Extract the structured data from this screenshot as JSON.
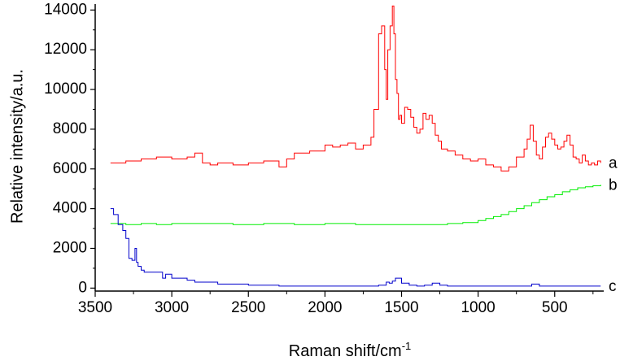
{
  "chart_data": {
    "type": "line",
    "xlabel": "Raman shift/cm",
    "xlabel_sup": "-1",
    "ylabel": "Relative intensity/a.u.",
    "xlim": [
      3500,
      180
    ],
    "ylim": [
      -150,
      14300
    ],
    "x_reversed": true,
    "grid": false,
    "legend": "none",
    "x_ticks": [
      3500,
      3000,
      2500,
      2000,
      1500,
      1000,
      500
    ],
    "x_tick_labels": [
      "3500",
      "3000",
      "2500",
      "2000",
      "1500",
      "1000",
      "500"
    ],
    "y_ticks": [
      0,
      2000,
      4000,
      6000,
      8000,
      10000,
      12000,
      14000
    ],
    "y_tick_labels": [
      "0",
      "2000",
      "4000",
      "6000",
      "8000",
      "10000",
      "12000",
      "14000"
    ],
    "series": [
      {
        "label": "a",
        "color": "#ff0000",
        "x": [
          3400,
          3300,
          3200,
          3100,
          3000,
          2900,
          2850,
          2800,
          2750,
          2700,
          2600,
          2500,
          2400,
          2300,
          2250,
          2200,
          2100,
          2000,
          1950,
          1900,
          1850,
          1800,
          1750,
          1700,
          1680,
          1650,
          1630,
          1610,
          1600,
          1590,
          1575,
          1560,
          1550,
          1540,
          1530,
          1520,
          1510,
          1500,
          1480,
          1460,
          1440,
          1420,
          1400,
          1380,
          1360,
          1340,
          1320,
          1300,
          1280,
          1260,
          1240,
          1200,
          1150,
          1100,
          1050,
          1000,
          950,
          900,
          850,
          800,
          750,
          700,
          680,
          660,
          640,
          620,
          600,
          580,
          560,
          540,
          520,
          500,
          480,
          460,
          440,
          420,
          400,
          380,
          360,
          340,
          320,
          300,
          280,
          260,
          240,
          220,
          200
        ],
        "y": [
          6300,
          6400,
          6500,
          6600,
          6500,
          6600,
          6800,
          6300,
          6200,
          6300,
          6200,
          6300,
          6400,
          6100,
          6500,
          6800,
          6900,
          7200,
          7100,
          7200,
          7300,
          7000,
          7200,
          7600,
          9000,
          12800,
          13200,
          11000,
          9500,
          12000,
          13200,
          14200,
          12800,
          10500,
          9800,
          8500,
          8700,
          8300,
          9100,
          9000,
          8600,
          8100,
          7800,
          8000,
          8800,
          8500,
          8700,
          8300,
          7700,
          7400,
          7000,
          6900,
          6700,
          6500,
          6400,
          6500,
          6200,
          6100,
          5900,
          6100,
          6600,
          7000,
          7500,
          8200,
          7400,
          6700,
          6500,
          7100,
          7600,
          7800,
          7500,
          7200,
          7000,
          7100,
          7400,
          7700,
          7200,
          6600,
          6500,
          6300,
          6700,
          6400,
          6200,
          6300,
          6200,
          6400,
          6300
        ]
      },
      {
        "label": "b",
        "color": "#00ee00",
        "x": [
          3400,
          3300,
          3200,
          3100,
          3000,
          2800,
          2600,
          2400,
          2200,
          2000,
          1800,
          1600,
          1400,
          1200,
          1100,
          1000,
          950,
          900,
          850,
          800,
          750,
          700,
          650,
          600,
          550,
          500,
          450,
          400,
          350,
          300,
          250,
          200
        ],
        "y": [
          3250,
          3200,
          3250,
          3200,
          3250,
          3250,
          3200,
          3250,
          3200,
          3250,
          3200,
          3200,
          3200,
          3250,
          3300,
          3400,
          3500,
          3600,
          3700,
          3850,
          4000,
          4150,
          4300,
          4450,
          4600,
          4700,
          4850,
          4950,
          5050,
          5100,
          5150,
          5200
        ]
      },
      {
        "label": "c",
        "color": "#0000cc",
        "x": [
          3400,
          3380,
          3350,
          3320,
          3300,
          3280,
          3260,
          3240,
          3230,
          3220,
          3200,
          3180,
          3150,
          3100,
          3060,
          3040,
          3000,
          2950,
          2900,
          2850,
          2800,
          2700,
          2600,
          2500,
          2400,
          2300,
          2200,
          2100,
          2000,
          1900,
          1800,
          1700,
          1650,
          1600,
          1580,
          1560,
          1540,
          1500,
          1450,
          1400,
          1350,
          1300,
          1250,
          1200,
          1100,
          1000,
          900,
          800,
          700,
          650,
          600,
          500,
          400,
          300,
          200
        ],
        "y": [
          4000,
          3700,
          3200,
          2900,
          2500,
          1500,
          1400,
          2000,
          1300,
          1100,
          900,
          800,
          800,
          800,
          500,
          700,
          500,
          500,
          400,
          300,
          300,
          200,
          200,
          150,
          150,
          100,
          100,
          100,
          100,
          100,
          100,
          100,
          150,
          300,
          250,
          350,
          500,
          250,
          150,
          100,
          150,
          250,
          150,
          100,
          100,
          100,
          100,
          100,
          100,
          200,
          100,
          100,
          100,
          100,
          100
        ]
      }
    ]
  }
}
